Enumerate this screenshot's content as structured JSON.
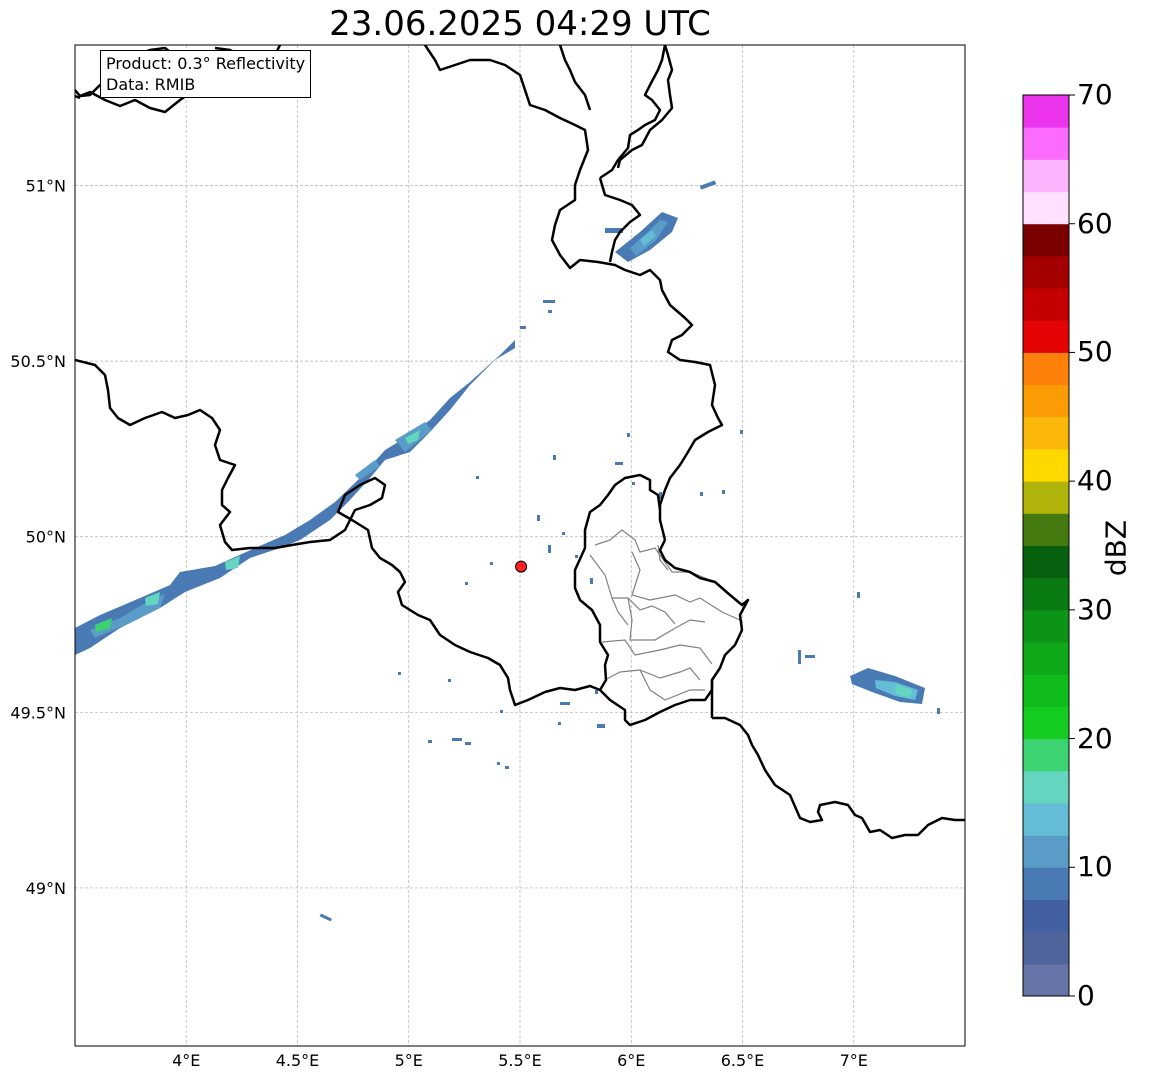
{
  "title": "23.06.2025 04:29 UTC",
  "info": {
    "product_line": "Product: 0.3° Reflectivity",
    "data_line": "Data: RMIB"
  },
  "map": {
    "lon_range": [
      3.5,
      7.5
    ],
    "lat_range": [
      48.55,
      51.4
    ],
    "gridlines": true,
    "lon_ticks": [
      {
        "value": 4.0,
        "label": "4°E"
      },
      {
        "value": 4.5,
        "label": "4.5°E"
      },
      {
        "value": 5.0,
        "label": "5°E"
      },
      {
        "value": 5.5,
        "label": "5.5°E"
      },
      {
        "value": 6.0,
        "label": "6°E"
      },
      {
        "value": 6.5,
        "label": "6.5°E"
      },
      {
        "value": 7.0,
        "label": "7°E"
      }
    ],
    "lat_ticks": [
      {
        "value": 49.0,
        "label": "49°N"
      },
      {
        "value": 49.5,
        "label": "49.5°N"
      },
      {
        "value": 50.0,
        "label": "50°N"
      },
      {
        "value": 50.5,
        "label": "50.5°N"
      },
      {
        "value": 51.0,
        "label": "51°N"
      }
    ],
    "radar_site": {
      "lon": 5.505,
      "lat": 49.915,
      "color": "#ff2020"
    }
  },
  "colorbar": {
    "label": "dBZ",
    "min": 0,
    "max": 70,
    "tick_labels": [
      "0",
      "10",
      "20",
      "30",
      "40",
      "50",
      "60",
      "70"
    ],
    "colors": [
      "#6674a8",
      "#50649c",
      "#4260a2",
      "#4a7ab4",
      "#5a9cc8",
      "#64bcd6",
      "#64d6c0",
      "#3cd470",
      "#14cc20",
      "#10bc1c",
      "#0ea818",
      "#0c9416",
      "#0a7a12",
      "#07600e",
      "#457a10",
      "#b0b40a",
      "#ffd800",
      "#fcb80a",
      "#fc9c04",
      "#fc800a",
      "#e40404",
      "#c40000",
      "#a40000",
      "#7a0000",
      "#fee0ff",
      "#fcb4ff",
      "#fc6cfc",
      "#ec34ec"
    ]
  }
}
